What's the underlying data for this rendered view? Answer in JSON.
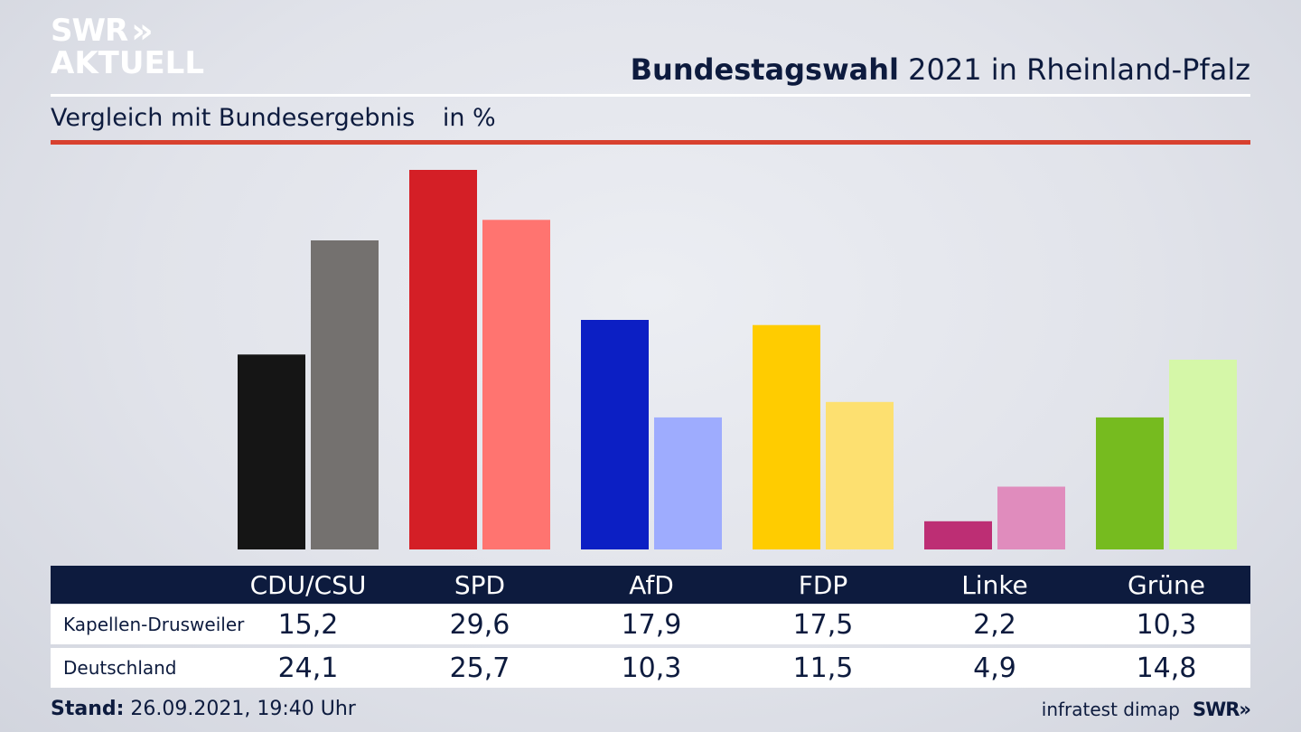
{
  "logo": {
    "line1": "SWR",
    "chevrons": "»",
    "line2": "AKTUELL"
  },
  "header": {
    "title_bold": "Bundestagswahl",
    "title_rest": "2021 in Rheinland-Pfalz"
  },
  "subheader": {
    "text": "Vergleich mit Bundesergebnis",
    "unit": "in %"
  },
  "colors": {
    "accent_rule": "#d8412f",
    "table_header": "#0d1b3e",
    "text": "#0d1b3e"
  },
  "chart_data": {
    "type": "bar",
    "categories": [
      "CDU/CSU",
      "SPD",
      "AfD",
      "FDP",
      "Linke",
      "Grüne"
    ],
    "series": [
      {
        "name": "Kapellen-Drusweiler",
        "values": [
          15.2,
          29.6,
          17.9,
          17.5,
          2.2,
          10.3
        ],
        "display": [
          "15,2",
          "29,6",
          "17,9",
          "17,5",
          "2,2",
          "10,3"
        ],
        "colors": [
          "#151515",
          "#d41f26",
          "#0c1fc4",
          "#ffcc00",
          "#bd2e74",
          "#76bb1f"
        ]
      },
      {
        "name": "Deutschland",
        "values": [
          24.1,
          25.7,
          10.3,
          11.5,
          4.9,
          14.8
        ],
        "display": [
          "24,1",
          "25,7",
          "10,3",
          "11,5",
          "4,9",
          "14,8"
        ],
        "colors": [
          "#74716f",
          "#ff7470",
          "#9eacfe",
          "#fde070",
          "#e08cbd",
          "#d5f7a8"
        ]
      }
    ],
    "ylim": [
      0,
      29.6
    ],
    "grid": false
  },
  "footer": {
    "stand_label": "Stand:",
    "stand_value": "26.09.2021, 19:40 Uhr",
    "source": "infratest dimap",
    "brand": "SWR»"
  }
}
